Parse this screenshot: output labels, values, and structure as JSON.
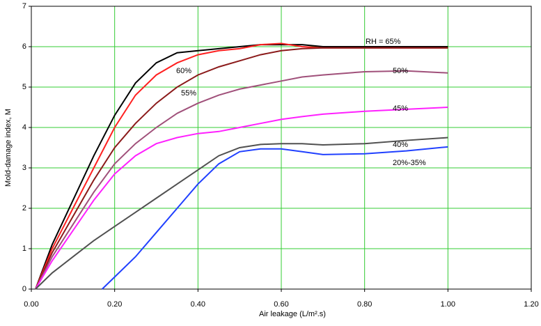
{
  "chart_data": {
    "type": "line",
    "xlabel": "Air leakage (L/m².s)",
    "ylabel": "Mold-damage index, M",
    "xlim": [
      0,
      1.2
    ],
    "xticks": [
      {
        "value": 0,
        "label": "0.00"
      },
      {
        "value": 0.2,
        "label": "0.20"
      },
      {
        "value": 0.4,
        "label": "0.40"
      },
      {
        "value": 0.6,
        "label": "0.60"
      },
      {
        "value": 0.8,
        "label": "0.80"
      },
      {
        "value": 1.0,
        "label": "1.00"
      },
      {
        "value": 1.2,
        "label": "1.20"
      }
    ],
    "ylim": [
      0,
      7
    ],
    "yticks": [
      0,
      1,
      2,
      3,
      4,
      5,
      6,
      7
    ],
    "grid": true,
    "grid_color": "#33cc33",
    "series": [
      {
        "name": "RH = 65%",
        "color": "#000000",
        "x": [
          0.01,
          0.05,
          0.1,
          0.15,
          0.2,
          0.25,
          0.3,
          0.35,
          0.4,
          0.45,
          0.5,
          0.55,
          0.6,
          0.65,
          0.7,
          0.8,
          0.9,
          1.0
        ],
        "values": [
          0,
          1.1,
          2.2,
          3.3,
          4.3,
          5.1,
          5.6,
          5.85,
          5.9,
          5.95,
          6.0,
          6.05,
          6.05,
          6.05,
          6.0,
          6.0,
          6.0,
          6.0
        ]
      },
      {
        "name": "60%",
        "color": "#ff2020",
        "x": [
          0.01,
          0.05,
          0.1,
          0.15,
          0.2,
          0.25,
          0.3,
          0.35,
          0.4,
          0.45,
          0.5,
          0.55,
          0.6,
          0.65,
          0.7,
          0.8,
          0.9,
          1.0
        ],
        "values": [
          0,
          1.0,
          2.0,
          3.0,
          4.0,
          4.8,
          5.3,
          5.6,
          5.8,
          5.9,
          5.95,
          6.05,
          6.08,
          6.0,
          5.97,
          5.97,
          5.97,
          5.97
        ]
      },
      {
        "name": "55%",
        "color": "#8b1a1a",
        "x": [
          0.01,
          0.05,
          0.1,
          0.15,
          0.2,
          0.25,
          0.3,
          0.35,
          0.4,
          0.45,
          0.5,
          0.55,
          0.6,
          0.65,
          0.7,
          0.8,
          0.9,
          1.0
        ],
        "values": [
          0,
          0.9,
          1.8,
          2.7,
          3.5,
          4.1,
          4.6,
          5.0,
          5.3,
          5.5,
          5.65,
          5.8,
          5.9,
          5.95,
          5.97,
          5.97,
          5.97,
          5.97
        ]
      },
      {
        "name": "50%",
        "color": "#a0507a",
        "x": [
          0.01,
          0.05,
          0.1,
          0.15,
          0.2,
          0.25,
          0.3,
          0.35,
          0.4,
          0.45,
          0.5,
          0.55,
          0.6,
          0.65,
          0.7,
          0.8,
          0.9,
          1.0
        ],
        "values": [
          0,
          0.8,
          1.6,
          2.4,
          3.1,
          3.6,
          4.0,
          4.35,
          4.6,
          4.8,
          4.95,
          5.05,
          5.15,
          5.25,
          5.3,
          5.38,
          5.4,
          5.35
        ]
      },
      {
        "name": "45%",
        "color": "#ff20ff",
        "x": [
          0.01,
          0.05,
          0.1,
          0.15,
          0.2,
          0.25,
          0.3,
          0.35,
          0.4,
          0.45,
          0.5,
          0.55,
          0.6,
          0.65,
          0.7,
          0.8,
          0.9,
          1.0
        ],
        "values": [
          0,
          0.7,
          1.45,
          2.2,
          2.85,
          3.3,
          3.6,
          3.75,
          3.85,
          3.9,
          4.0,
          4.1,
          4.2,
          4.27,
          4.33,
          4.4,
          4.45,
          4.5
        ]
      },
      {
        "name": "40%",
        "color": "#505050",
        "x": [
          0.01,
          0.05,
          0.1,
          0.15,
          0.2,
          0.25,
          0.3,
          0.35,
          0.4,
          0.45,
          0.5,
          0.55,
          0.6,
          0.65,
          0.7,
          0.8,
          0.9,
          1.0
        ],
        "values": [
          0,
          0.4,
          0.8,
          1.2,
          1.55,
          1.9,
          2.25,
          2.6,
          2.95,
          3.3,
          3.5,
          3.58,
          3.6,
          3.6,
          3.57,
          3.6,
          3.68,
          3.75
        ]
      },
      {
        "name": "20%-35%",
        "color": "#2040ff",
        "x": [
          0.17,
          0.2,
          0.25,
          0.3,
          0.35,
          0.4,
          0.45,
          0.5,
          0.55,
          0.6,
          0.65,
          0.7,
          0.8,
          0.9,
          1.0
        ],
        "values": [
          0,
          0.3,
          0.8,
          1.4,
          2.0,
          2.6,
          3.1,
          3.4,
          3.47,
          3.47,
          3.4,
          3.33,
          3.35,
          3.42,
          3.52
        ]
      }
    ]
  }
}
